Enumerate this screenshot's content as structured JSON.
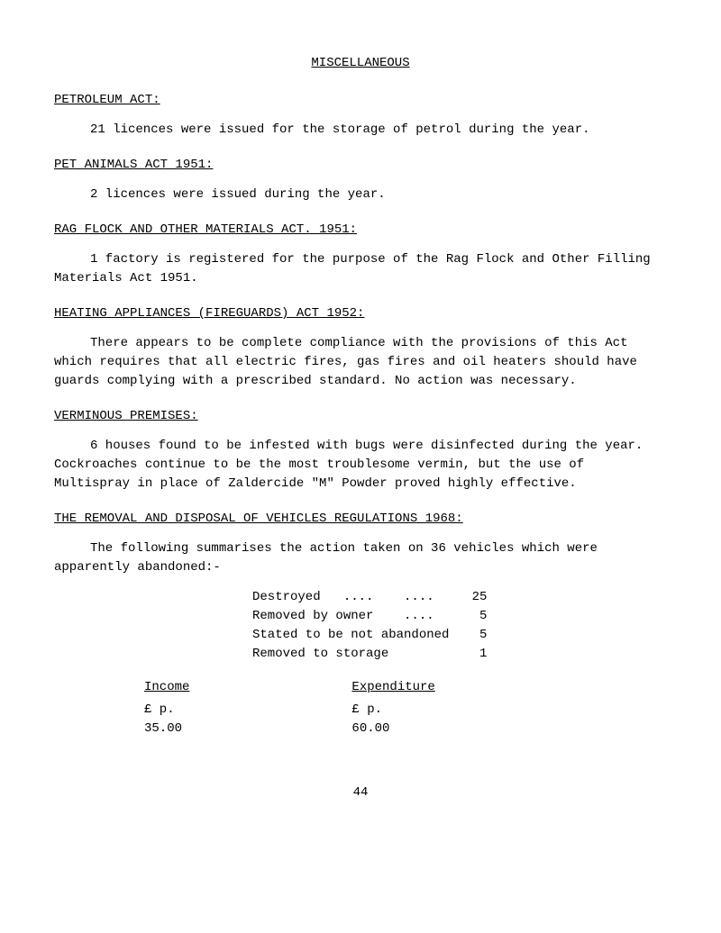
{
  "title": "MISCELLANEOUS",
  "sections": {
    "petroleum": {
      "heading": "PETROLEUM ACT:",
      "para": "21 licences were issued for the storage of petrol during the year."
    },
    "petAnimals": {
      "heading": "PET ANIMALS ACT 1951:",
      "para": "2 licences were issued during the year."
    },
    "ragFlock": {
      "heading": "RAG FLOCK AND OTHER MATERIALS ACT. 1951:",
      "para": "1 factory is registered for the purpose of the Rag Flock and Other Filling Materials Act 1951."
    },
    "heating": {
      "heading": "HEATING APPLIANCES (FIREGUARDS) ACT 1952:",
      "para": "There appears to be complete compliance with the provisions of this Act which requires that all electric fires, gas fires and oil heaters should have guards complying with a prescribed standard.  No action was necessary."
    },
    "verminous": {
      "heading": "VERMINOUS PREMISES:",
      "para": "6 houses found to be infested with bugs were disinfected during the year. Cockroaches continue to be the most troublesome vermin, but the use of Multispray in place of Zaldercide \"M\" Powder proved highly effective."
    },
    "removal": {
      "heading": "THE REMOVAL AND DISPOSAL OF VEHICLES REGULATIONS 1968:",
      "para": "The following summarises the action taken on 36 vehicles which were apparently abandoned:-",
      "rows": {
        "r1": "Destroyed   ....    ....     25",
        "r2": "Removed by owner    ....      5",
        "r3": "Stated to be not abandoned    5",
        "r4": "Removed to storage            1"
      },
      "income": {
        "heading": "Income",
        "line1": "£  p.",
        "line2": "35.00"
      },
      "expenditure": {
        "heading": "Expenditure",
        "line1": "£  p.",
        "line2": "60.00"
      }
    }
  },
  "pageNumber": "44"
}
